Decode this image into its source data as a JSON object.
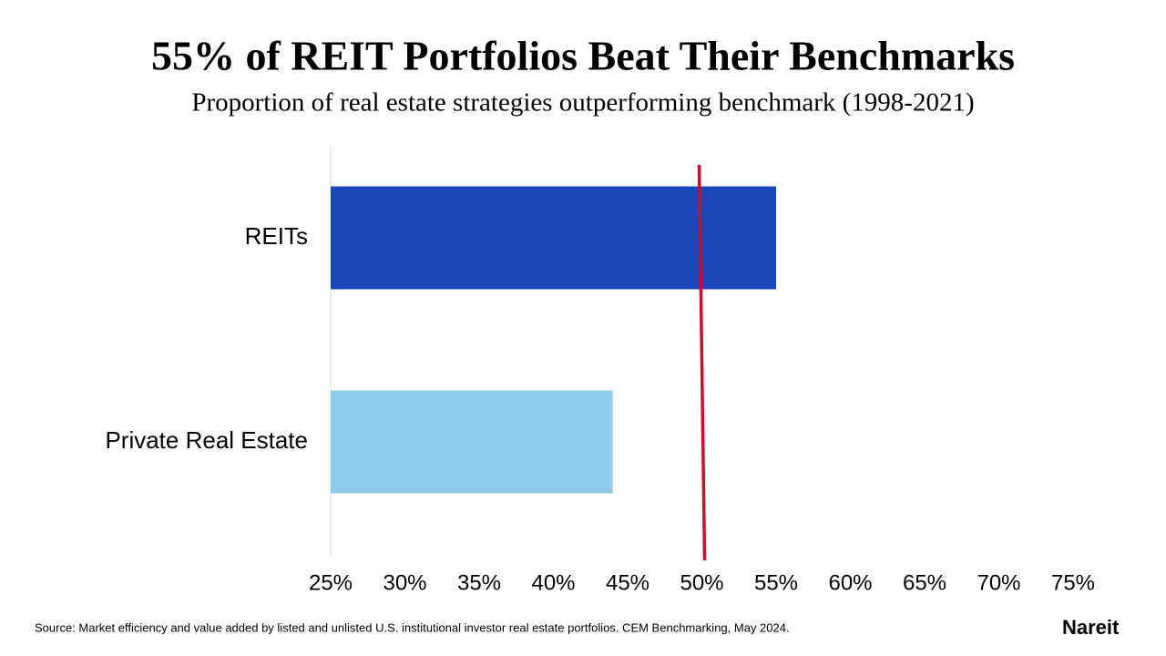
{
  "chart_data": {
    "type": "bar",
    "orientation": "horizontal",
    "title": "55% of REIT Portfolios Beat Their Benchmarks",
    "subtitle": "Proportion of real estate strategies outperforming benchmark (1998-2021)",
    "categories": [
      "REITs",
      "Private Real Estate"
    ],
    "values": [
      55,
      44
    ],
    "colors": [
      "#1c47bb",
      "#8fcbe8"
    ],
    "xlim": [
      25,
      75
    ],
    "xticks": [
      {
        "value": 25,
        "label": "25%"
      },
      {
        "value": 30,
        "label": "30%"
      },
      {
        "value": 35,
        "label": "35%"
      },
      {
        "value": 40,
        "label": "40%"
      },
      {
        "value": 45,
        "label": "45%"
      },
      {
        "value": 50,
        "label": "50%"
      },
      {
        "value": 55,
        "label": "55%"
      },
      {
        "value": 60,
        "label": "60%"
      },
      {
        "value": 65,
        "label": "65%"
      },
      {
        "value": 70,
        "label": "70%"
      },
      {
        "value": 75,
        "label": "75%"
      }
    ],
    "reference_line": 50,
    "reference_color": "#c8102e",
    "source": "Source: Market efficiency and value added by listed and unlisted U.S. institutional investor real estate portfolios. CEM Benchmarking, May 2024.",
    "logo": "Nareit"
  }
}
